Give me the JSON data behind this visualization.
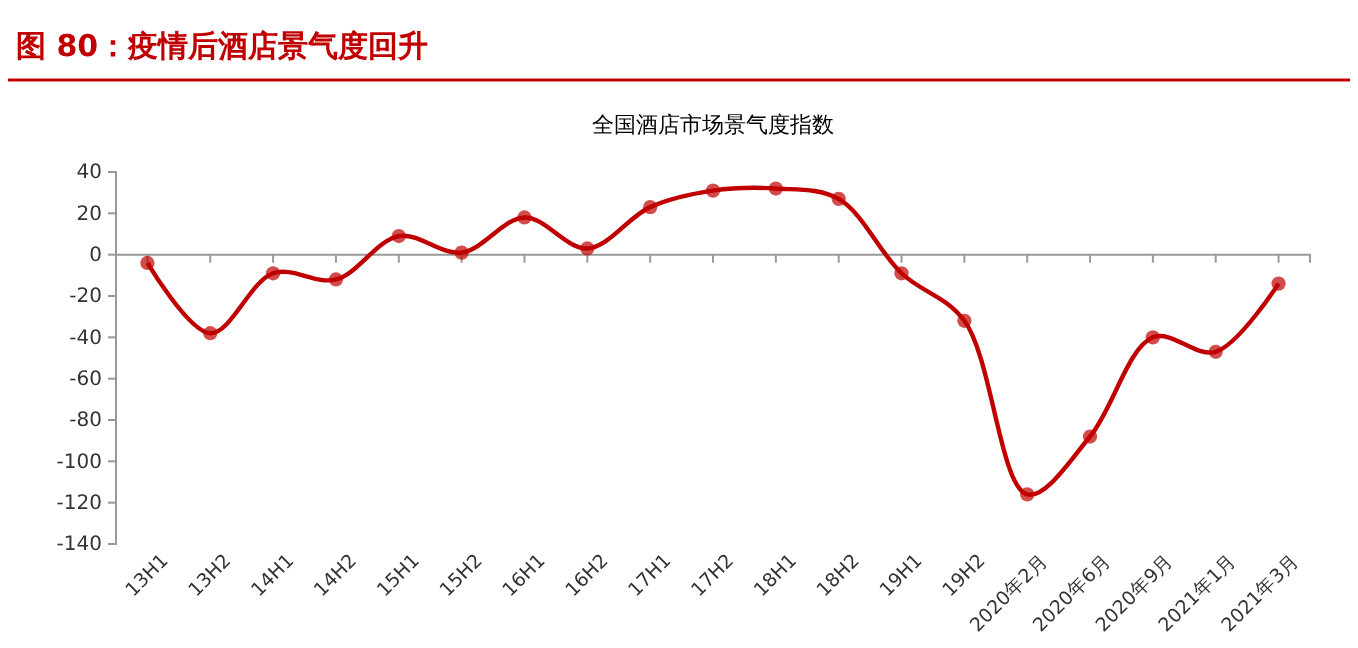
{
  "chart_data": {
    "type": "line",
    "title": "图 80：疫情后酒店景气度回升",
    "subtitle": "全国酒店市场景气度指数",
    "categories": [
      "13H1",
      "13H2",
      "14H1",
      "14H2",
      "15H1",
      "15H2",
      "16H1",
      "16H2",
      "17H1",
      "17H2",
      "18H1",
      "18H2",
      "19H1",
      "19H2",
      "2020年2月",
      "2020年6月",
      "2020年9月",
      "2021年1月",
      "2021年3月"
    ],
    "series": [
      {
        "color": "#c00000",
        "values": [
          -4,
          -38,
          -9,
          -12,
          9,
          1,
          18,
          3,
          23,
          31,
          32,
          27,
          -9,
          -32,
          -116,
          -88,
          -40,
          -47,
          -14
        ]
      }
    ],
    "ylim": [
      -140,
      40
    ],
    "yticks": [
      -140,
      -120,
      -100,
      -80,
      -60,
      -40,
      -20,
      0,
      20,
      40
    ],
    "grid": false,
    "marker": "circle",
    "line_style": "solid"
  }
}
